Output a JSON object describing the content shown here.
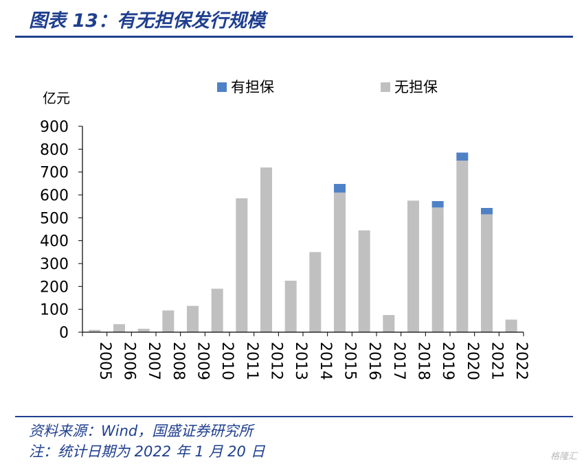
{
  "header": {
    "title": "图表 13：有无担保发行规模"
  },
  "footer": {
    "source": "资料来源：Wind，国盛证券研究所",
    "note": "注：统计日期为 2022 年 1 月 20 日"
  },
  "watermark": "格隆汇",
  "colors": {
    "secured": "#4f81c6",
    "unsecured": "#c0c0c0",
    "accent": "#1f3f8f"
  },
  "chart_data": {
    "type": "bar",
    "stacked": true,
    "unit_label": "亿元",
    "categories": [
      "2005",
      "2006",
      "2007",
      "2008",
      "2009",
      "2010",
      "2011",
      "2012",
      "2013",
      "2014",
      "2015",
      "2016",
      "2017",
      "2018",
      "2019",
      "2020",
      "2021",
      "2022"
    ],
    "series": [
      {
        "name": "有担保",
        "values": [
          0,
          0,
          0,
          0,
          0,
          0,
          0,
          0,
          0,
          0,
          38,
          0,
          0,
          0,
          28,
          35,
          28,
          0
        ]
      },
      {
        "name": "无担保",
        "values": [
          10,
          35,
          15,
          95,
          115,
          190,
          585,
          720,
          225,
          350,
          610,
          445,
          75,
          575,
          545,
          750,
          515,
          55
        ]
      }
    ],
    "yticks": [
      "0",
      "100",
      "200",
      "300",
      "400",
      "500",
      "600",
      "700",
      "800",
      "900"
    ],
    "ylim": [
      0,
      900
    ],
    "legend_position": "top"
  }
}
